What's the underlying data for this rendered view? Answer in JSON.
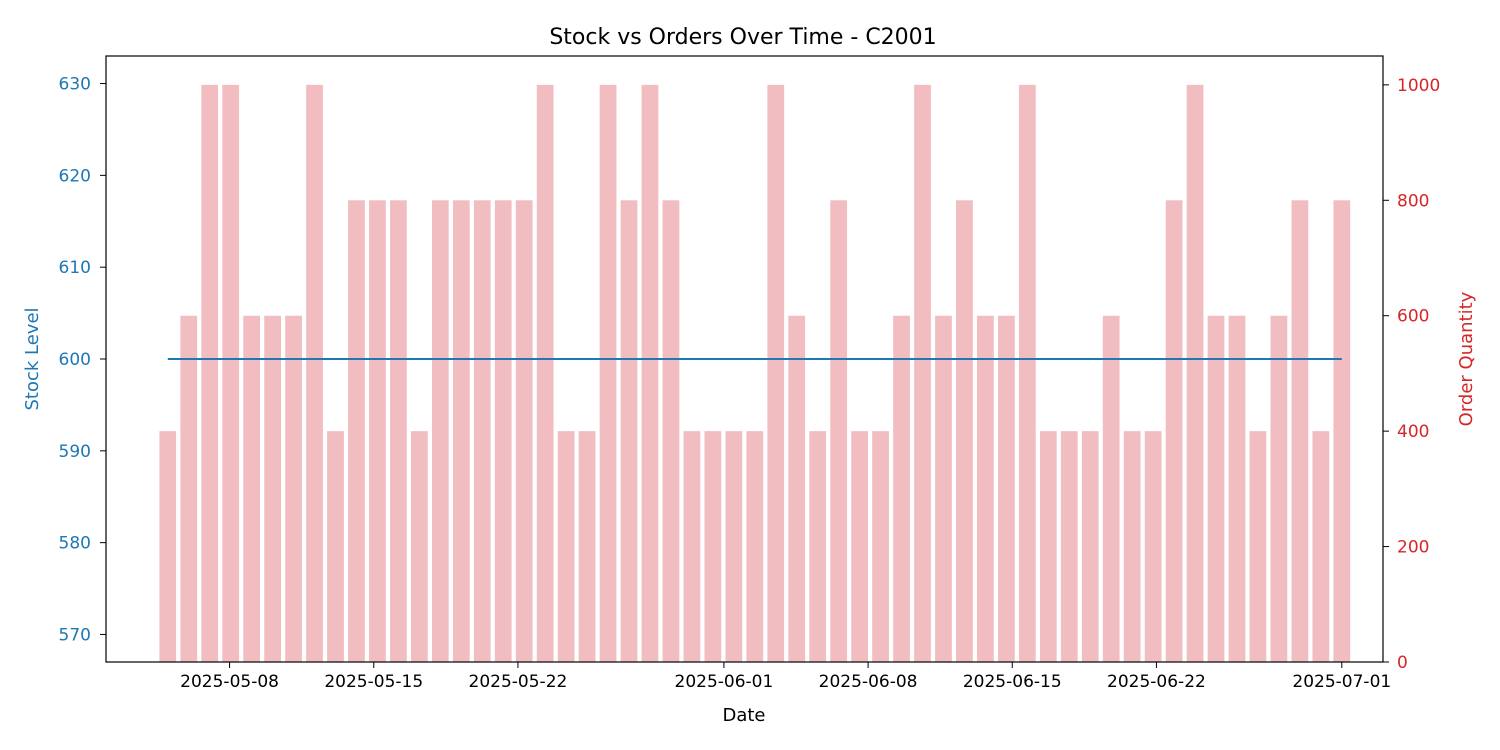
{
  "chart_data": {
    "type": "bar+line",
    "title": "Stock vs Orders Over Time - C2001",
    "xlabel": "Date",
    "ylabel_left": "Stock Level",
    "ylabel_right": "Order Quantity",
    "x_start": "2025-05-05",
    "x_end": "2025-07-01",
    "xlim": [
      "2025-05-02",
      "2025-07-03"
    ],
    "ylim_left": [
      567,
      633
    ],
    "ylim_right": [
      0,
      1050
    ],
    "x_ticks": [
      "2025-05-08",
      "2025-05-15",
      "2025-05-22",
      "2025-06-01",
      "2025-06-08",
      "2025-06-15",
      "2025-06-22",
      "2025-07-01"
    ],
    "left_ticks": [
      570,
      580,
      590,
      600,
      610,
      620,
      630
    ],
    "right_ticks": [
      0,
      200,
      400,
      600,
      800,
      1000
    ],
    "colors": {
      "stock": "#1f77b4",
      "orders": "#f2bdc1",
      "right_axis": "#d62728",
      "left_axis": "#1f77b4"
    },
    "series": [
      {
        "name": "Order Quantity",
        "type": "bar",
        "values": [
          400,
          600,
          1000,
          1000,
          600,
          600,
          600,
          1000,
          400,
          800,
          800,
          800,
          400,
          800,
          800,
          800,
          800,
          800,
          1000,
          400,
          400,
          1000,
          800,
          1000,
          800,
          400,
          400,
          400,
          400,
          1000,
          600,
          400,
          800,
          400,
          400,
          600,
          1000,
          600,
          800,
          600,
          600,
          1000,
          400,
          400,
          400,
          600,
          400,
          400,
          800,
          1000,
          600,
          600,
          400,
          600,
          800,
          400,
          800
        ]
      },
      {
        "name": "Stock Level",
        "type": "line",
        "value": 600
      }
    ]
  }
}
